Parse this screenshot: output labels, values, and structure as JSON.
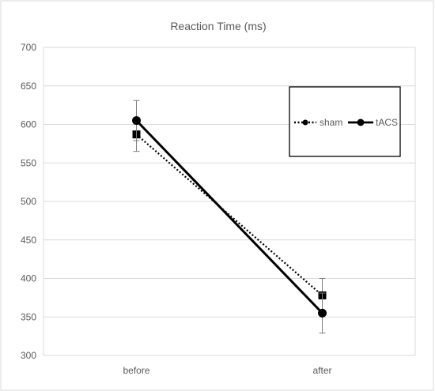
{
  "chart_data": {
    "type": "line",
    "title": "Reaction Time  (ms)",
    "xlabel": "",
    "ylabel": "",
    "categories": [
      "before",
      "after"
    ],
    "ylim": [
      300,
      700
    ],
    "yticks": [
      300,
      350,
      400,
      450,
      500,
      550,
      600,
      650,
      700
    ],
    "grid": "horizontal",
    "legend_position": "top-right",
    "series": [
      {
        "name": "sham",
        "values": [
          587,
          378
        ],
        "error": [
          22,
          22
        ],
        "line_style": "dotted",
        "marker": "square",
        "color": "#000000"
      },
      {
        "name": "tACS",
        "values": [
          605,
          355
        ],
        "error": [
          26,
          26
        ],
        "line_style": "solid",
        "marker": "circle",
        "color": "#000000"
      }
    ]
  }
}
